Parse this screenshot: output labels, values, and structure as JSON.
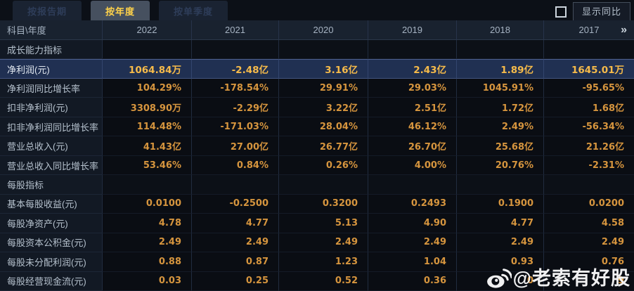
{
  "tabs": [
    {
      "label": "按报告期",
      "active": false
    },
    {
      "label": "按年度",
      "active": true
    },
    {
      "label": "按单季度",
      "active": false
    }
  ],
  "controls": {
    "show_yoy_label": "显示同比",
    "checkbox_checked": false
  },
  "table": {
    "corner_label": "科目\\年度",
    "years": [
      "2022",
      "2021",
      "2020",
      "2019",
      "2018",
      "2017"
    ],
    "more_glyph": "»",
    "rows": [
      {
        "type": "section",
        "label": "成长能力指标",
        "values": [
          "",
          "",
          "",
          "",
          "",
          ""
        ]
      },
      {
        "type": "highlight",
        "label": "净利润(元)",
        "values": [
          "1064.84万",
          "-2.48亿",
          "3.16亿",
          "2.43亿",
          "1.89亿",
          "1645.01万"
        ]
      },
      {
        "type": "data",
        "label": "净利润同比增长率",
        "values": [
          "104.29%",
          "-178.54%",
          "29.91%",
          "29.03%",
          "1045.91%",
          "-95.65%"
        ]
      },
      {
        "type": "data",
        "label": "扣非净利润(元)",
        "values": [
          "3308.90万",
          "-2.29亿",
          "3.22亿",
          "2.51亿",
          "1.72亿",
          "1.68亿"
        ]
      },
      {
        "type": "data",
        "label": "扣非净利润同比增长率",
        "values": [
          "114.48%",
          "-171.03%",
          "28.04%",
          "46.12%",
          "2.49%",
          "-56.34%"
        ]
      },
      {
        "type": "data",
        "label": "营业总收入(元)",
        "values": [
          "41.43亿",
          "27.00亿",
          "26.77亿",
          "26.70亿",
          "25.68亿",
          "21.26亿"
        ]
      },
      {
        "type": "data",
        "label": "营业总收入同比增长率",
        "values": [
          "53.46%",
          "0.84%",
          "0.26%",
          "4.00%",
          "20.76%",
          "-2.31%"
        ]
      },
      {
        "type": "section",
        "label": "每股指标",
        "values": [
          "",
          "",
          "",
          "",
          "",
          ""
        ]
      },
      {
        "type": "data",
        "label": "基本每股收益(元)",
        "values": [
          "0.0100",
          "-0.2500",
          "0.3200",
          "0.2493",
          "0.1900",
          "0.0200"
        ]
      },
      {
        "type": "data",
        "label": "每股净资产(元)",
        "values": [
          "4.78",
          "4.77",
          "5.13",
          "4.90",
          "4.77",
          "4.58"
        ]
      },
      {
        "type": "data",
        "label": "每股资本公积金(元)",
        "values": [
          "2.49",
          "2.49",
          "2.49",
          "2.49",
          "2.49",
          "2.49"
        ]
      },
      {
        "type": "data",
        "label": "每股未分配利润(元)",
        "values": [
          "0.88",
          "0.87",
          "1.23",
          "1.04",
          "0.93",
          "0.76"
        ]
      },
      {
        "type": "data",
        "label": "每股经营现金流(元)",
        "values": [
          "0.03",
          "0.25",
          "0.52",
          "0.36",
          "0",
          "9"
        ]
      }
    ]
  },
  "watermark": {
    "text": "@老索有好股",
    "icon": "weibo-logo"
  },
  "colors": {
    "page_bg": "#0a0d13",
    "active_tab_text": "#ffd24a",
    "value_gold": "#d6953e",
    "highlight_row_bg": "#203052",
    "highlight_value_gold": "#f6bb4a"
  }
}
